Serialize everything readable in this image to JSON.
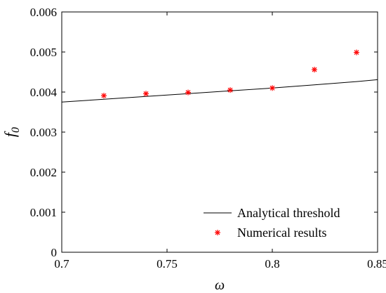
{
  "chart_data": {
    "type": "line",
    "title": "",
    "xlabel": "ω",
    "ylabel_main": "f",
    "ylabel_sub": "0",
    "xlim": [
      0.7,
      0.85
    ],
    "ylim": [
      0,
      0.006
    ],
    "x_ticks": [
      0.7,
      0.75,
      0.8,
      0.85
    ],
    "x_tick_labels": [
      "0.7",
      "0.75",
      "0.8",
      "0.85"
    ],
    "y_ticks": [
      0,
      0.001,
      0.002,
      0.003,
      0.004,
      0.005,
      0.006
    ],
    "y_tick_labels": [
      "0",
      "0.001",
      "0.002",
      "0.003",
      "0.004",
      "0.005",
      "0.006"
    ],
    "grid": false,
    "legend_position": "bottom-right",
    "series": [
      {
        "name": "Analytical threshold",
        "kind": "line",
        "color": "#000000",
        "x": [
          0.7,
          0.72,
          0.74,
          0.76,
          0.78,
          0.8,
          0.82,
          0.84,
          0.85
        ],
        "y": [
          0.00375,
          0.00382,
          0.00389,
          0.00396,
          0.00403,
          0.0041,
          0.00418,
          0.00426,
          0.00431
        ]
      },
      {
        "name": "Numerical results",
        "kind": "scatter",
        "marker": "asterisk",
        "color": "#ff0000",
        "x": [
          0.72,
          0.74,
          0.76,
          0.78,
          0.8,
          0.82,
          0.84
        ],
        "y": [
          0.00391,
          0.00396,
          0.00399,
          0.00405,
          0.0041,
          0.00456,
          0.00499
        ]
      }
    ]
  }
}
